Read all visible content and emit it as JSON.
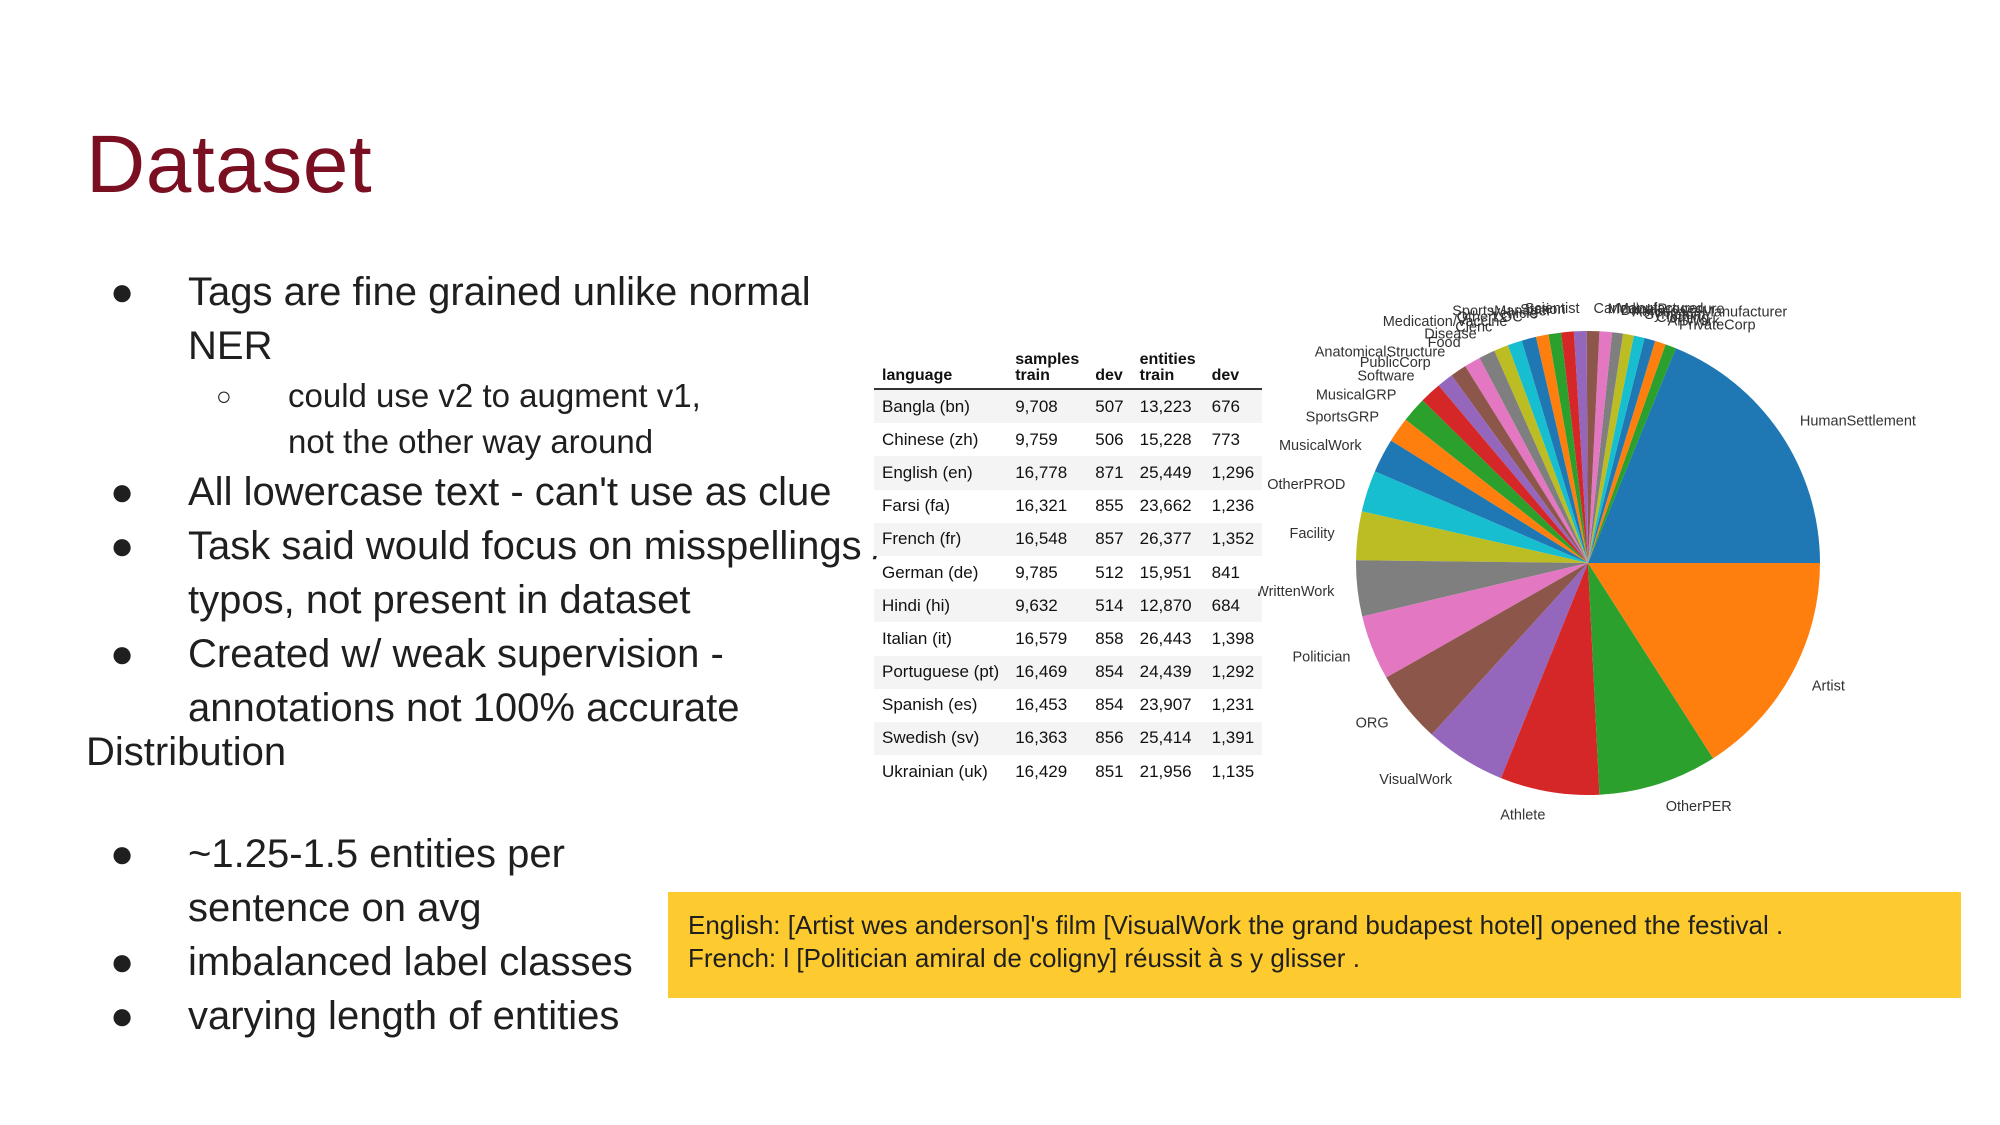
{
  "slide": {
    "title": "Dataset",
    "bullets": [
      {
        "text": "Tags are fine grained unlike normal NER",
        "sub": [
          "could use v2 to augment v1,",
          "not the other way around"
        ]
      },
      {
        "text": "All lowercase text - can't use as clue"
      },
      {
        "text": "Task said would focus on misspellings / typos, not present in dataset"
      },
      {
        "text": "Created w/ weak supervision - annotations not 100% accurate"
      }
    ],
    "bullet_glyph": "●",
    "sub_glyph": "○",
    "distribution_heading": "Distribution",
    "distribution_bullets": [
      "~1.25-1.5 entities per sentence on avg",
      "imbalanced label classes",
      "varying length of entities"
    ],
    "example_lines": [
      "English: [Artist wes anderson]'s film [VisualWork the grand budapest hotel] opened the festival .",
      "French: l [Politician amiral de coligny] réussit à s y glisser ."
    ],
    "colors": {
      "title": "#7a0f22",
      "example_bg": "#fdcb2f"
    }
  },
  "table": {
    "headers": [
      [
        "language"
      ],
      [
        "samples",
        "train"
      ],
      [
        "dev"
      ],
      [
        "entities",
        "train"
      ],
      [
        "dev"
      ]
    ],
    "rows": [
      [
        "Bangla (bn)",
        "9,708",
        "507",
        "13,223",
        "676"
      ],
      [
        "Chinese (zh)",
        "9,759",
        "506",
        "15,228",
        "773"
      ],
      [
        "English (en)",
        "16,778",
        "871",
        "25,449",
        "1,296"
      ],
      [
        "Farsi (fa)",
        "16,321",
        "855",
        "23,662",
        "1,236"
      ],
      [
        "French (fr)",
        "16,548",
        "857",
        "26,377",
        "1,352"
      ],
      [
        "German (de)",
        "9,785",
        "512",
        "15,951",
        "841"
      ],
      [
        "Hindi (hi)",
        "9,632",
        "514",
        "12,870",
        "684"
      ],
      [
        "Italian (it)",
        "16,579",
        "858",
        "26,443",
        "1,398"
      ],
      [
        "Portuguese (pt)",
        "16,469",
        "854",
        "24,439",
        "1,292"
      ],
      [
        "Spanish (es)",
        "16,453",
        "854",
        "23,907",
        "1,231"
      ],
      [
        "Swedish (sv)",
        "16,363",
        "856",
        "25,414",
        "1,391"
      ],
      [
        "Ukrainian (uk)",
        "16,429",
        "851",
        "21,956",
        "1,135"
      ]
    ]
  },
  "chart_data": {
    "type": "pie",
    "title": "",
    "slices": [
      {
        "label": "HumanSettlement",
        "value": 15.0,
        "color": "#1f77b4"
      },
      {
        "label": "PrivateCorp",
        "value": 0.6,
        "color": "#2ca02c"
      },
      {
        "label": "ArtWork",
        "value": 0.6,
        "color": "#ff7f0e"
      },
      {
        "label": "Clothing",
        "value": 0.6,
        "color": "#1f77b4"
      },
      {
        "label": "Symptom",
        "value": 0.6,
        "color": "#17becf"
      },
      {
        "label": "AerospaceManufacturer",
        "value": 0.6,
        "color": "#bcbd22"
      },
      {
        "label": "Drink",
        "value": 0.6,
        "color": "#7f7f7f"
      },
      {
        "label": "MedicalProcedure",
        "value": 0.7,
        "color": "#e377c2"
      },
      {
        "label": "CarManufacturer",
        "value": 0.7,
        "color": "#8c564b"
      },
      {
        "label": "Scientist",
        "value": 0.7,
        "color": "#9467bd"
      },
      {
        "label": "Station",
        "value": 0.7,
        "color": "#d62728"
      },
      {
        "label": "SportsManager",
        "value": 0.7,
        "color": "#2ca02c"
      },
      {
        "label": "Vehicle",
        "value": 0.7,
        "color": "#ff7f0e"
      },
      {
        "label": "OtherLOC",
        "value": 0.8,
        "color": "#1f77b4"
      },
      {
        "label": "Medication/Vaccine",
        "value": 0.8,
        "color": "#17becf"
      },
      {
        "label": "Cleric",
        "value": 0.8,
        "color": "#bcbd22"
      },
      {
        "label": "Disease",
        "value": 0.9,
        "color": "#7f7f7f"
      },
      {
        "label": "Food",
        "value": 0.9,
        "color": "#e377c2"
      },
      {
        "label": "AnatomicalStructure",
        "value": 0.9,
        "color": "#8c564b"
      },
      {
        "label": "PublicCorp",
        "value": 0.9,
        "color": "#9467bd"
      },
      {
        "label": "Software",
        "value": 1.2,
        "color": "#d62728"
      },
      {
        "label": "MusicalGRP",
        "value": 1.4,
        "color": "#2ca02c"
      },
      {
        "label": "SportsGRP",
        "value": 1.4,
        "color": "#ff7f0e"
      },
      {
        "label": "MusicalWork",
        "value": 1.9,
        "color": "#1f77b4"
      },
      {
        "label": "OtherPROD",
        "value": 2.3,
        "color": "#17becf"
      },
      {
        "label": "Facility",
        "value": 2.7,
        "color": "#bcbd22"
      },
      {
        "label": "WrittenWork",
        "value": 3.1,
        "color": "#7f7f7f"
      },
      {
        "label": "Politician",
        "value": 3.6,
        "color": "#e377c2"
      },
      {
        "label": "ORG",
        "value": 4.0,
        "color": "#8c564b"
      },
      {
        "label": "VisualWork",
        "value": 4.5,
        "color": "#9467bd"
      },
      {
        "label": "Athlete",
        "value": 5.5,
        "color": "#d62728"
      },
      {
        "label": "OtherPER",
        "value": 6.6,
        "color": "#2ca02c"
      },
      {
        "label": "Artist",
        "value": 12.7,
        "color": "#ff7f0e"
      }
    ],
    "start_angle_deg": 0,
    "direction": "counterclockwise"
  }
}
